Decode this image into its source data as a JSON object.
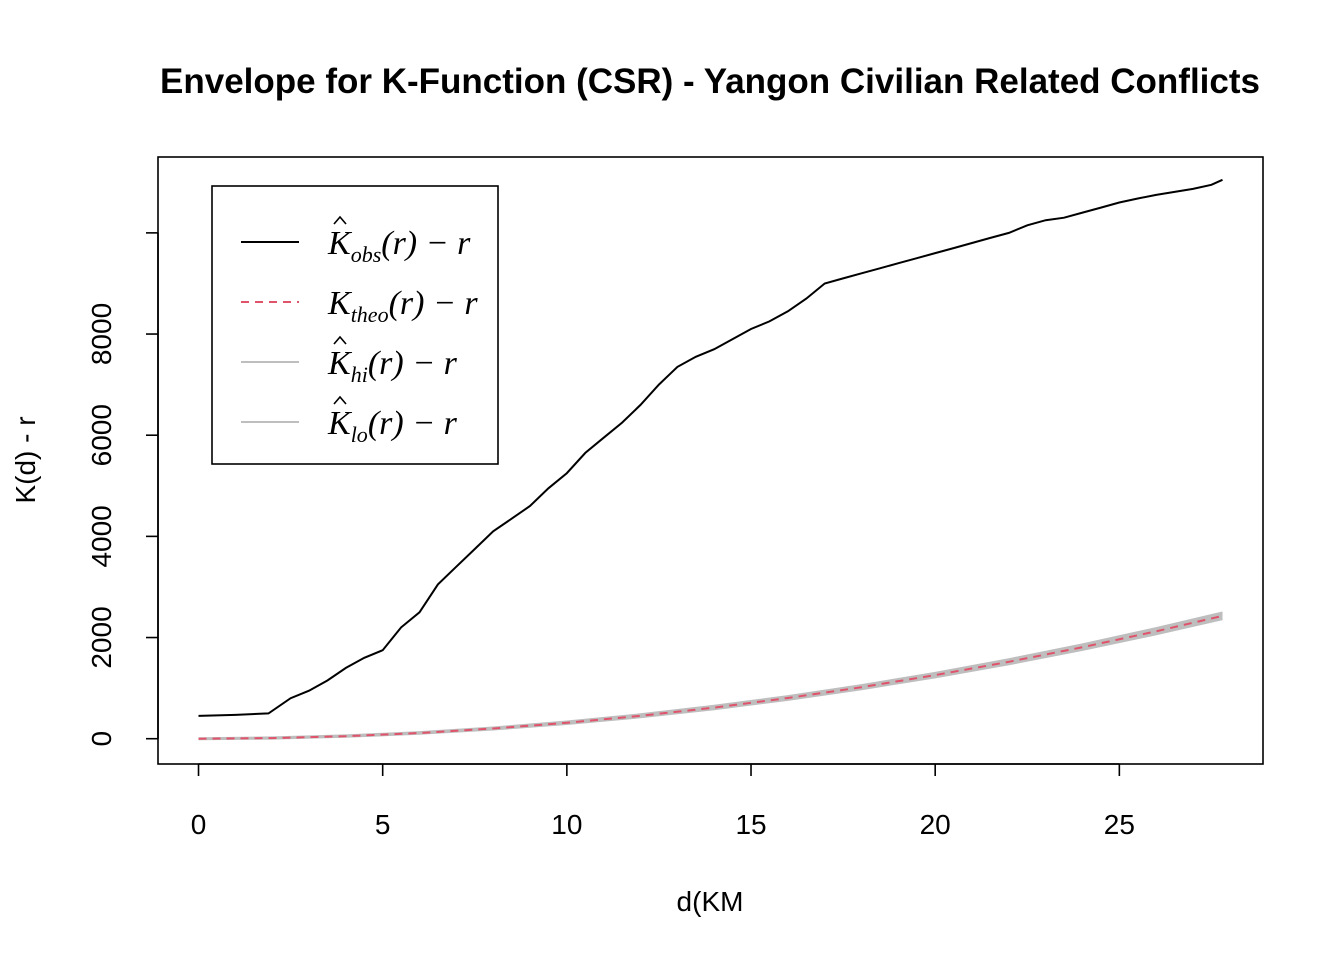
{
  "chart_data": {
    "type": "line",
    "title": "Envelope for K-Function (CSR) - Yangon Civilian Related Conflicts",
    "xlabel": "d(KM",
    "ylabel": "K(d) - r",
    "xlim": [
      -1.1,
      28.9
    ],
    "ylim": [
      -500,
      11500
    ],
    "x_ticks": [
      "0",
      "5",
      "10",
      "15",
      "20",
      "25"
    ],
    "y_ticks": [
      "0",
      "2000",
      "4000",
      "6000",
      "8000"
    ],
    "legend_position": "top-left",
    "colors": {
      "obs": "#000000",
      "theo": "#DF536B",
      "envelope": "#BEBEBE"
    },
    "legend": [
      {
        "main": "K",
        "hat": true,
        "sub": "obs",
        "rest": "(r) − r",
        "style": "solid",
        "color": "#000000"
      },
      {
        "main": "K",
        "hat": false,
        "sub": "theo",
        "rest": "(r) − r",
        "style": "dashed",
        "color": "#DF536B"
      },
      {
        "main": "K",
        "hat": true,
        "sub": "hi",
        "rest": "(r) − r",
        "style": "solid",
        "color": "#BEBEBE"
      },
      {
        "main": "K",
        "hat": true,
        "sub": "lo",
        "rest": "(r) − r",
        "style": "solid",
        "color": "#BEBEBE"
      }
    ],
    "series": [
      {
        "key": "obs",
        "x": [
          0,
          1,
          1.9,
          2.5,
          3,
          3.5,
          4,
          4.5,
          5,
          5.5,
          6,
          6.5,
          7,
          7.5,
          8,
          8.5,
          9,
          9.5,
          10,
          10.5,
          11,
          11.5,
          12,
          12.5,
          13,
          13.5,
          14,
          14.5,
          15,
          15.5,
          16,
          16.5,
          17,
          17.5,
          18,
          18.5,
          19,
          19.5,
          20,
          20.5,
          21,
          21.5,
          22,
          22.5,
          23,
          23.5,
          24,
          24.5,
          25,
          25.5,
          26,
          26.5,
          27,
          27.5,
          27.8
        ],
        "y": [
          450,
          470,
          500,
          800,
          950,
          1150,
          1400,
          1600,
          1750,
          2200,
          2500,
          3050,
          3400,
          3750,
          4100,
          4350,
          4600,
          4950,
          5250,
          5650,
          5950,
          6250,
          6600,
          7000,
          7350,
          7550,
          7700,
          7900,
          8100,
          8250,
          8450,
          8700,
          9000,
          9100,
          9200,
          9300,
          9400,
          9500,
          9600,
          9700,
          9800,
          9900,
          10000,
          10150,
          10250,
          10300,
          10400,
          10500,
          10600,
          10680,
          10750,
          10810,
          10870,
          10950,
          11050
        ]
      },
      {
        "key": "theo",
        "x": [
          0,
          2,
          4,
          6,
          8,
          10,
          12,
          14,
          16,
          18,
          20,
          22,
          24,
          26,
          27.8
        ],
        "y": [
          0,
          12.6,
          50.3,
          113.1,
          201.1,
          314.2,
          452.4,
          615.8,
          804.2,
          1017.9,
          1256.6,
          1520.5,
          1809.6,
          2123.7,
          2428.0
        ]
      },
      {
        "key": "hi",
        "x": [
          0,
          2,
          4,
          6,
          8,
          10,
          12,
          14,
          16,
          18,
          20,
          22,
          24,
          26,
          27.8
        ],
        "y": [
          10,
          25,
          65,
          130,
          222,
          340,
          482,
          650,
          842,
          1060,
          1303,
          1572,
          1866,
          2186,
          2495
        ]
      },
      {
        "key": "lo",
        "x": [
          0,
          2,
          4,
          6,
          8,
          10,
          12,
          14,
          16,
          18,
          20,
          22,
          24,
          26,
          27.8
        ],
        "y": [
          -10,
          2,
          37,
          97,
          182,
          290,
          424,
          583,
          768,
          978,
          1212,
          1471,
          1756,
          2065,
          2365
        ]
      }
    ]
  }
}
